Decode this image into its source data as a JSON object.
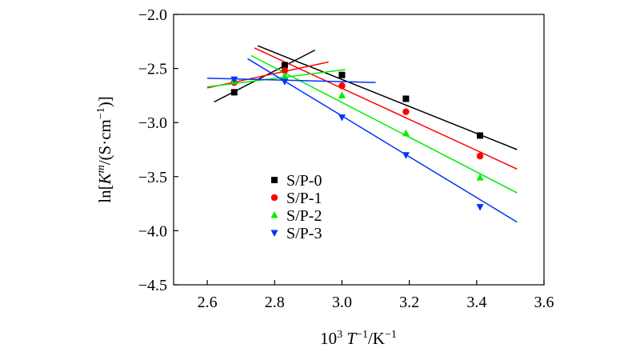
{
  "chart_data": {
    "type": "scatter",
    "title": "",
    "xlabel": {
      "prefix": "10",
      "prefix_sup": "3",
      "var": "T",
      "mid": "/K",
      "var_sup": "−1",
      "end_sup": "−1"
    },
    "ylabel": {
      "pre": "ln[",
      "var": "K",
      "var_sup": "m",
      "mid": "/(S·cm",
      "unit_sup": "−1",
      "end": ")]"
    },
    "xlim": [
      2.5,
      3.6
    ],
    "ylim": [
      -4.5,
      -2.0
    ],
    "x_ticks": [
      2.6,
      2.8,
      3.0,
      3.2,
      3.4,
      3.6
    ],
    "x_tick_labels": [
      "2.6",
      "2.8",
      "3.0",
      "3.2",
      "3.4",
      "3.6"
    ],
    "y_ticks": [
      -2.0,
      -2.5,
      -3.0,
      -3.5,
      -4.0,
      -4.5
    ],
    "y_tick_labels": [
      "−2.0",
      "−2.5",
      "−3.0",
      "−3.5",
      "−4.0",
      "−4.5"
    ],
    "legend_position": "lower-left",
    "series": [
      {
        "name": "S/P-0",
        "color": "#000000",
        "marker": "square",
        "x": [
          2.68,
          2.83,
          3.0,
          3.19,
          3.41
        ],
        "y": [
          -2.72,
          -2.47,
          -2.56,
          -2.78,
          -3.12
        ],
        "fit_lines": [
          {
            "x": [
              2.62,
              2.92
            ],
            "y": [
              -2.81,
              -2.33
            ]
          },
          {
            "x": [
              2.75,
              3.52
            ],
            "y": [
              -2.29,
              -3.25
            ]
          }
        ]
      },
      {
        "name": "S/P-1",
        "color": "#ff0000",
        "marker": "circle",
        "x": [
          2.68,
          2.83,
          3.0,
          3.19,
          3.41
        ],
        "y": [
          -2.63,
          -2.52,
          -2.66,
          -2.9,
          -3.31
        ],
        "fit_lines": [
          {
            "x": [
              2.6,
              2.96
            ],
            "y": [
              -2.68,
              -2.44
            ]
          },
          {
            "x": [
              2.74,
              3.52
            ],
            "y": [
              -2.31,
              -3.43
            ]
          }
        ]
      },
      {
        "name": "S/P-2",
        "color": "#00ee00",
        "marker": "triangle-up",
        "x": [
          2.68,
          2.83,
          3.0,
          3.19,
          3.41
        ],
        "y": [
          -2.62,
          -2.57,
          -2.75,
          -3.1,
          -3.51
        ],
        "fit_lines": [
          {
            "x": [
              2.6,
              3.01
            ],
            "y": [
              -2.67,
              -2.51
            ]
          },
          {
            "x": [
              2.73,
              3.52
            ],
            "y": [
              -2.38,
              -3.65
            ]
          }
        ]
      },
      {
        "name": "S/P-3",
        "color": "#0033ff",
        "marker": "triangle-down",
        "x": [
          2.68,
          2.83,
          3.0,
          3.19,
          3.41
        ],
        "y": [
          -2.6,
          -2.62,
          -2.95,
          -3.3,
          -3.78
        ],
        "fit_lines": [
          {
            "x": [
              2.6,
              3.1
            ],
            "y": [
              -2.59,
              -2.63
            ]
          },
          {
            "x": [
              2.72,
              3.52
            ],
            "y": [
              -2.41,
              -3.92
            ]
          }
        ]
      }
    ]
  }
}
